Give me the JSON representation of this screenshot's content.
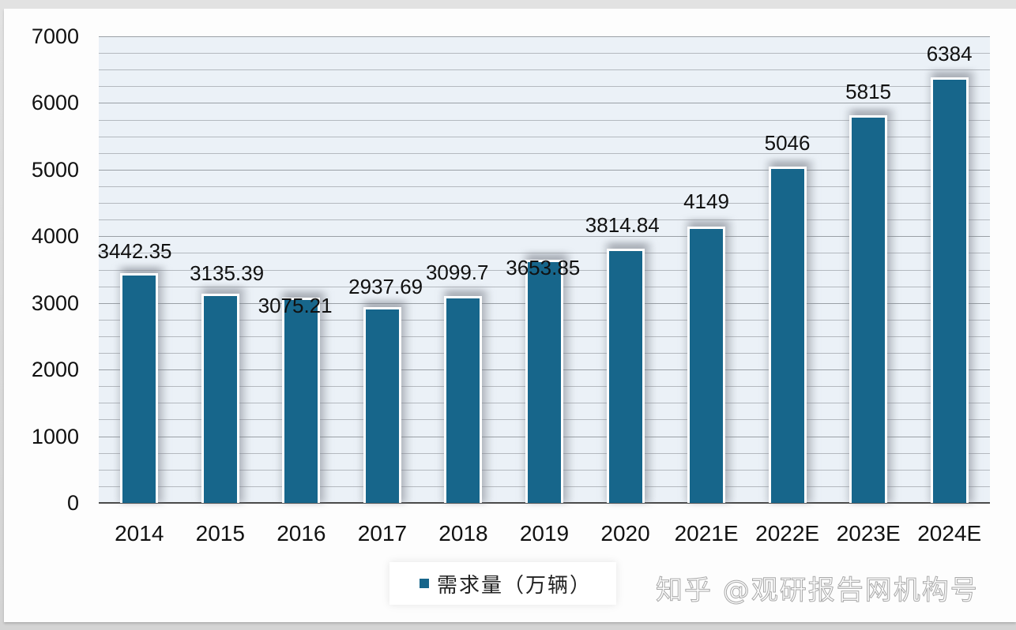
{
  "chart_data": {
    "type": "bar",
    "title": "",
    "xlabel": "",
    "ylabel": "",
    "categories": [
      "2014",
      "2015",
      "2016",
      "2017",
      "2018",
      "2019",
      "2020",
      "2021E",
      "2022E",
      "2023E",
      "2024E"
    ],
    "series": [
      {
        "name": "需求量（万辆）",
        "color": "#17668b",
        "values": [
          3442.35,
          3135.39,
          3075.21,
          2937.69,
          3099.7,
          3653.85,
          3814.84,
          4149,
          5046,
          5815,
          6384
        ],
        "labels": [
          "3442.35",
          "3135.39",
          "3075.21",
          "2937.69",
          "3099.7",
          "3653.85",
          "3814.84",
          "4149",
          "5046",
          "5815",
          "6384"
        ]
      }
    ],
    "ylim": [
      0,
      7000
    ],
    "yticks": [
      "0",
      "1000",
      "2000",
      "3000",
      "4000",
      "5000",
      "6000",
      "7000"
    ],
    "grid": true,
    "minor_grid_step": 250,
    "legend_position": "bottom"
  },
  "legend": {
    "label": "需求量（万辆）"
  },
  "watermark": "知乎 @观研报告网机构号",
  "colors": {
    "bar": "#17668b",
    "plot_bg": "#ebf1f7"
  }
}
